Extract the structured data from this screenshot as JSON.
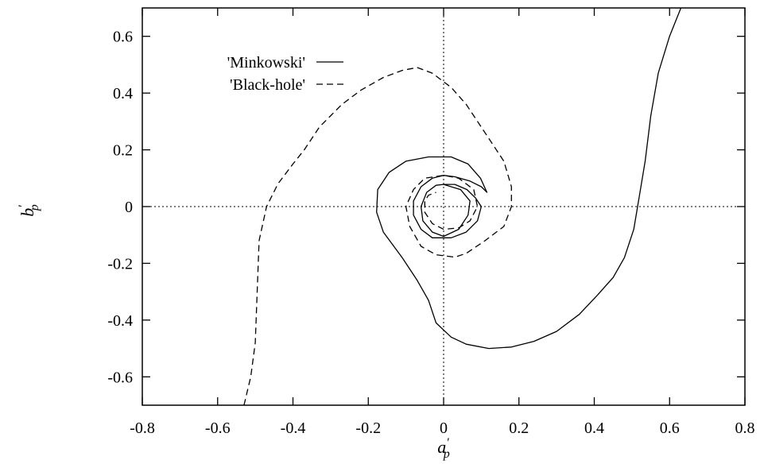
{
  "chart_data": {
    "type": "line",
    "title": "",
    "xlabel": "a'_p",
    "ylabel": "b'_p",
    "xlabel_parts": {
      "base": "a",
      "prime": "′",
      "sub": "p"
    },
    "ylabel_parts": {
      "base": "b",
      "prime": "′",
      "sub": "p"
    },
    "xlim": [
      -0.8,
      0.8
    ],
    "ylim": [
      -0.7,
      0.7
    ],
    "x_ticks": [
      -0.8,
      -0.6,
      -0.4,
      -0.2,
      0,
      0.2,
      0.4,
      0.6,
      0.8
    ],
    "x_tick_labels": [
      "-0.8",
      "-0.6",
      "-0.4",
      "-0.2",
      "0",
      "0.2",
      "0.4",
      "0.6",
      "0.8"
    ],
    "y_ticks": [
      -0.6,
      -0.4,
      -0.2,
      0,
      0.2,
      0.4,
      0.6
    ],
    "y_tick_labels": [
      "-0.6",
      "-0.4",
      "-0.2",
      "0",
      "0.2",
      "0.4",
      "0.6"
    ],
    "zero_lines": true,
    "grid": false,
    "legend_position": "top-left",
    "series": [
      {
        "name": "'Minkowski'",
        "style": "solid",
        "color": "#000000",
        "points": [
          [
            0.0,
            0.078
          ],
          [
            0.045,
            0.06
          ],
          [
            0.07,
            0.02
          ],
          [
            0.065,
            -0.03
          ],
          [
            0.04,
            -0.08
          ],
          [
            0.0,
            -0.105
          ],
          [
            -0.03,
            -0.09
          ],
          [
            -0.055,
            -0.05
          ],
          [
            -0.06,
            0.0
          ],
          [
            -0.045,
            0.05
          ],
          [
            -0.02,
            0.075
          ],
          [
            0.0,
            0.078
          ],
          [
            0.03,
            0.078
          ],
          [
            0.062,
            0.06
          ],
          [
            0.085,
            0.03
          ],
          [
            0.1,
            0.0
          ],
          [
            0.09,
            -0.05
          ],
          [
            0.06,
            -0.09
          ],
          [
            0.02,
            -0.11
          ],
          [
            -0.03,
            -0.11
          ],
          [
            -0.06,
            -0.08
          ],
          [
            -0.08,
            -0.03
          ],
          [
            -0.08,
            0.02
          ],
          [
            -0.06,
            0.07
          ],
          [
            -0.03,
            0.1
          ],
          [
            0.0,
            0.11
          ],
          [
            0.03,
            0.105
          ],
          [
            0.07,
            0.09
          ],
          [
            0.1,
            0.07
          ],
          [
            0.115,
            0.05
          ],
          [
            0.098,
            0.1
          ],
          [
            0.065,
            0.15
          ],
          [
            0.02,
            0.175
          ],
          [
            -0.04,
            0.175
          ],
          [
            -0.1,
            0.16
          ],
          [
            -0.145,
            0.12
          ],
          [
            -0.175,
            0.06
          ],
          [
            -0.178,
            -0.02
          ],
          [
            -0.16,
            -0.09
          ],
          [
            -0.11,
            -0.18
          ],
          [
            -0.07,
            -0.26
          ],
          [
            -0.04,
            -0.33
          ],
          [
            -0.02,
            -0.41
          ],
          [
            0.02,
            -0.46
          ],
          [
            0.06,
            -0.485
          ],
          [
            0.12,
            -0.5
          ],
          [
            0.18,
            -0.495
          ],
          [
            0.24,
            -0.475
          ],
          [
            0.3,
            -0.44
          ],
          [
            0.36,
            -0.38
          ],
          [
            0.41,
            -0.31
          ],
          [
            0.45,
            -0.25
          ],
          [
            0.48,
            -0.18
          ],
          [
            0.505,
            -0.08
          ],
          [
            0.52,
            0.04
          ],
          [
            0.535,
            0.16
          ],
          [
            0.55,
            0.32
          ],
          [
            0.57,
            0.47
          ],
          [
            0.6,
            0.6
          ],
          [
            0.63,
            0.7
          ]
        ]
      },
      {
        "name": "'Black-hole'",
        "style": "dashed",
        "color": "#000000",
        "points": [
          [
            -0.53,
            -0.7
          ],
          [
            -0.512,
            -0.6
          ],
          [
            -0.5,
            -0.48
          ],
          [
            -0.495,
            -0.3
          ],
          [
            -0.49,
            -0.12
          ],
          [
            -0.47,
            0.0
          ],
          [
            -0.44,
            0.08
          ],
          [
            -0.4,
            0.15
          ],
          [
            -0.37,
            0.2
          ],
          [
            -0.33,
            0.28
          ],
          [
            -0.27,
            0.36
          ],
          [
            -0.22,
            0.41
          ],
          [
            -0.16,
            0.455
          ],
          [
            -0.11,
            0.48
          ],
          [
            -0.07,
            0.49
          ],
          [
            -0.03,
            0.47
          ],
          [
            0.02,
            0.42
          ],
          [
            0.06,
            0.36
          ],
          [
            0.1,
            0.28
          ],
          [
            0.13,
            0.22
          ],
          [
            0.16,
            0.16
          ],
          [
            0.18,
            0.07
          ],
          [
            0.18,
            0.0
          ],
          [
            0.16,
            -0.07
          ],
          [
            0.11,
            -0.12
          ],
          [
            0.06,
            -0.165
          ],
          [
            0.03,
            -0.178
          ],
          [
            -0.02,
            -0.17
          ],
          [
            -0.06,
            -0.14
          ],
          [
            -0.09,
            -0.07
          ],
          [
            -0.1,
            0.0
          ],
          [
            -0.08,
            0.06
          ],
          [
            -0.05,
            0.1
          ],
          [
            0.0,
            0.11
          ],
          [
            0.04,
            0.1
          ],
          [
            0.08,
            0.06
          ],
          [
            0.09,
            0.0
          ],
          [
            0.07,
            -0.05
          ],
          [
            0.04,
            -0.075
          ],
          [
            0.0,
            -0.08
          ],
          [
            -0.03,
            -0.06
          ],
          [
            -0.05,
            -0.02
          ],
          [
            -0.05,
            0.02
          ],
          [
            -0.04,
            0.04
          ],
          [
            -0.02,
            0.05
          ]
        ]
      }
    ]
  }
}
